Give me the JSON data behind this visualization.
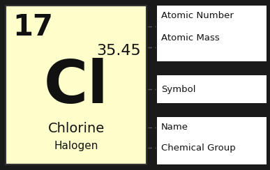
{
  "bg_color": "#ffffcc",
  "border_color": "#333333",
  "text_color": "#111111",
  "atomic_number": "17",
  "atomic_mass": "35.45",
  "symbol": "Cl",
  "name": "Chlorine",
  "group": "Halogen",
  "label_box_color": "#ffffff",
  "dashed_color": "#555555",
  "fig_bg": "#1a1a1a",
  "label_atomic_number": "Atomic Number",
  "label_atomic_mass": "Atomic Mass",
  "label_symbol": "Symbol",
  "label_name": "Name",
  "label_group": "Chemical Group"
}
